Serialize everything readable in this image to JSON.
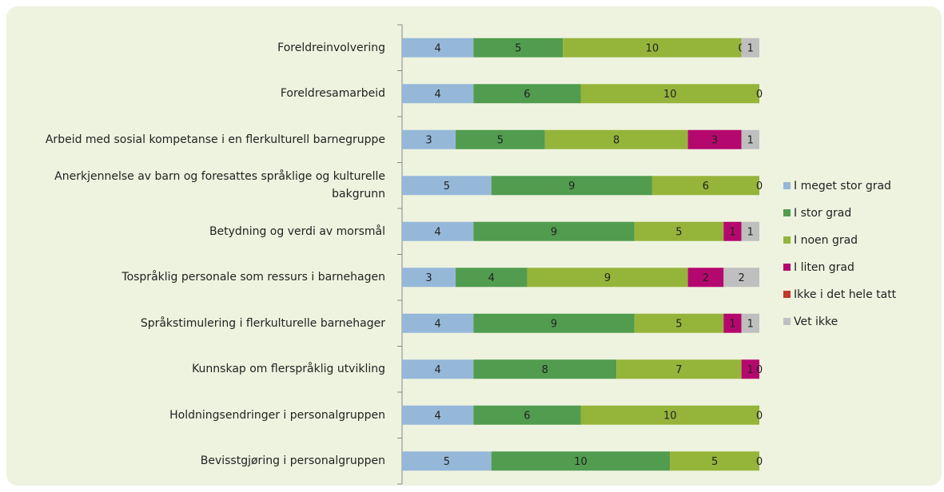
{
  "chart_data": {
    "type": "stacked-barh",
    "categories": [
      "Foreldreinvolvering",
      "Foreldresamarbeid",
      "Arbeid med sosial kompetanse i en flerkulturell barnegruppe",
      "Anerkjennelse av barn og foresattes språklige og kulturelle bakgrunn",
      "Betydning og verdi av morsmål",
      "Tospråklig personale som ressurs i barnehagen",
      "Språkstimulering i flerkulturelle barnehager",
      "Kunnskap om flerspråklig utvikling",
      "Holdningsendringer i personalgruppen",
      "Bevisstgjøring i personalgruppen"
    ],
    "series": [
      {
        "name": "I meget stor grad",
        "color": "#95b8d9",
        "values": [
          4,
          4,
          3,
          5,
          4,
          3,
          4,
          4,
          4,
          5
        ]
      },
      {
        "name": "I stor grad",
        "color": "#519c4f",
        "values": [
          5,
          6,
          5,
          9,
          9,
          4,
          9,
          8,
          6,
          10
        ]
      },
      {
        "name": "I noen grad",
        "color": "#95b43a",
        "values": [
          10,
          10,
          8,
          6,
          5,
          9,
          5,
          7,
          10,
          5
        ]
      },
      {
        "name": "I liten grad",
        "color": "#b5086e",
        "values": [
          null,
          null,
          3,
          null,
          1,
          2,
          1,
          1,
          null,
          null
        ]
      },
      {
        "name": "Ikke i det hele tatt",
        "color": "#c0392b",
        "values": [
          0,
          0,
          null,
          0,
          null,
          null,
          null,
          0,
          0,
          0
        ]
      },
      {
        "name": "Vet ikke",
        "color": "#bfbfbf",
        "values": [
          1,
          null,
          1,
          null,
          1,
          2,
          1,
          null,
          null,
          null
        ]
      }
    ],
    "xlim": [
      0,
      20
    ]
  }
}
